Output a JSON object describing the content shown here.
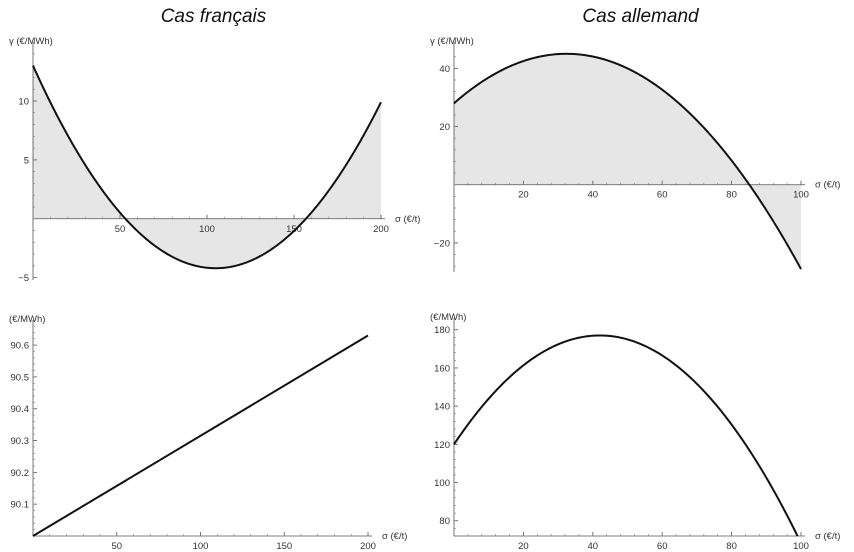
{
  "titles": {
    "left": "Cas français",
    "right": "Cas allemand"
  },
  "chart_data": [
    {
      "type": "area",
      "column": "left",
      "ylabel": "γ  (€/MWh)",
      "xlabel": "σ (€/t)",
      "xlim": [
        0,
        200
      ],
      "ylim": [
        -5.2,
        14.5
      ],
      "xticks": [
        50,
        100,
        150,
        200
      ],
      "yticks": [
        -5,
        5,
        10
      ],
      "area_fill": "#e6e6e6",
      "curve": {
        "kind": "quadratic",
        "points": [
          [
            0,
            13.0
          ],
          [
            54,
            0
          ],
          [
            105,
            -4.2
          ],
          [
            157,
            0
          ],
          [
            200,
            9.9
          ]
        ],
        "vertex": [
          105,
          -4.2
        ],
        "roots": [
          54,
          157
        ],
        "endpoints": [
          [
            0,
            13.0
          ],
          [
            200,
            9.9
          ]
        ]
      }
    },
    {
      "type": "area",
      "column": "right",
      "ylabel": "γ  (€/MWh)",
      "xlabel": "σ (€/t)",
      "xlim": [
        0,
        100
      ],
      "ylim": [
        -30,
        47
      ],
      "xticks": [
        20,
        40,
        60,
        80,
        100
      ],
      "yticks": [
        -20,
        20,
        40
      ],
      "area_fill": "#e6e6e6",
      "curve": {
        "kind": "quadratic",
        "points": [
          [
            0,
            28
          ],
          [
            32,
            45
          ],
          [
            84,
            0
          ],
          [
            100,
            -29
          ]
        ],
        "vertex": [
          32,
          45
        ],
        "endpoints": [
          [
            0,
            28
          ],
          [
            100,
            -29
          ]
        ]
      }
    },
    {
      "type": "line",
      "column": "left",
      "ylabel": "(€/MWh)",
      "xlabel": "σ (€/t)",
      "xlim": [
        0,
        200
      ],
      "ylim": [
        90.0,
        90.66
      ],
      "xticks": [
        50,
        100,
        150,
        200
      ],
      "yticks": [
        90.1,
        90.2,
        90.3,
        90.4,
        90.5,
        90.6
      ],
      "series": [
        {
          "x": [
            0,
            200
          ],
          "y": [
            90.0,
            90.63
          ]
        }
      ]
    },
    {
      "type": "line",
      "column": "right",
      "ylabel": "(€/MWh)",
      "xlabel": "σ (€/t)",
      "xlim": [
        0,
        100
      ],
      "ylim": [
        72,
        183
      ],
      "xticks": [
        20,
        40,
        60,
        80,
        100
      ],
      "yticks": [
        80,
        100,
        120,
        140,
        160,
        180
      ],
      "curve": {
        "kind": "quadratic",
        "points": [
          [
            0,
            120
          ],
          [
            42,
            177
          ],
          [
            99,
            72
          ]
        ],
        "vertex": [
          42,
          177
        ],
        "endpoints": [
          [
            0,
            120
          ],
          [
            99,
            72
          ]
        ]
      }
    }
  ]
}
